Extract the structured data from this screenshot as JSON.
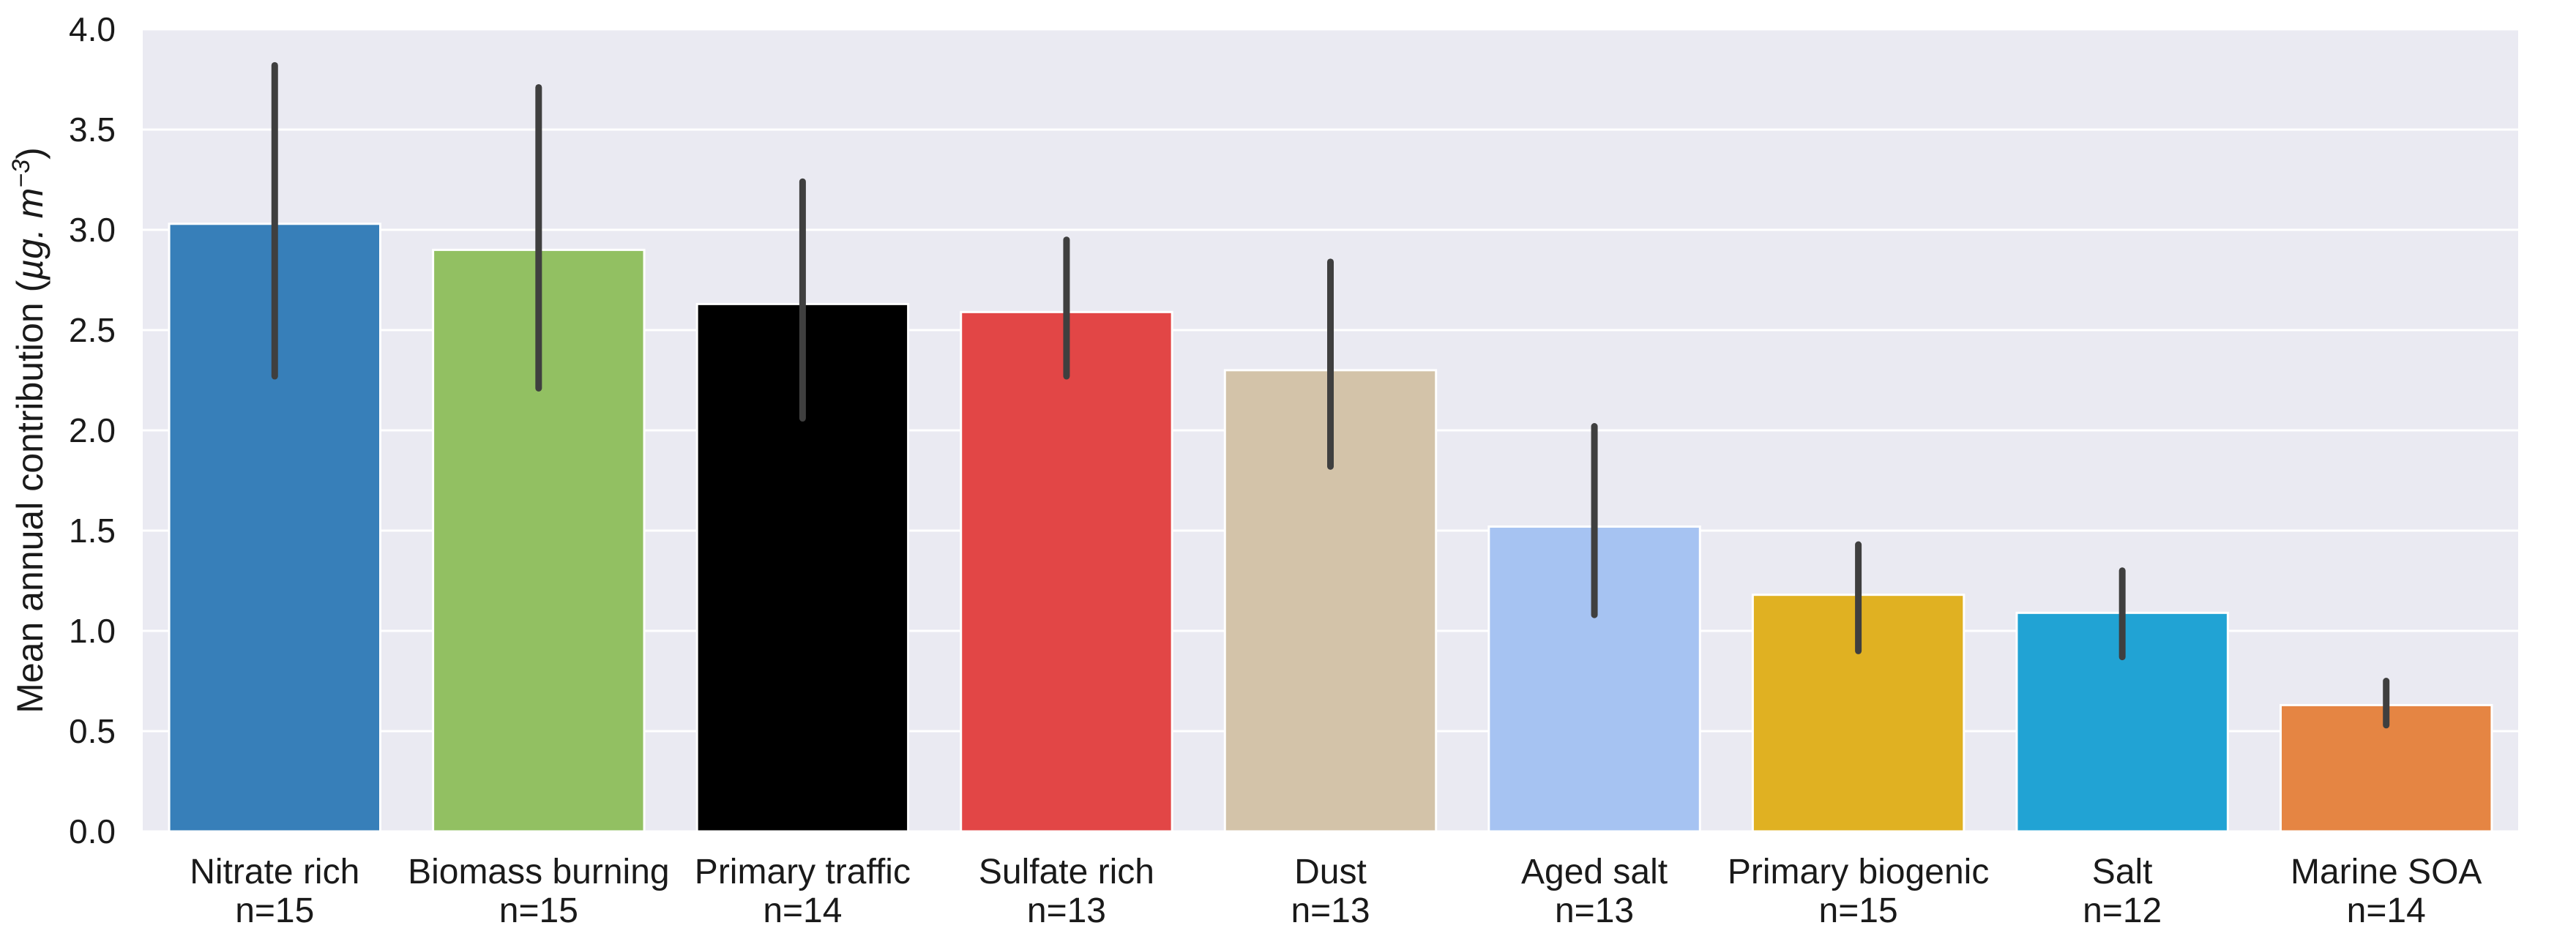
{
  "chart_data": {
    "type": "bar",
    "title": "",
    "xlabel": "",
    "ylabel": "Mean annual contribution (",
    "ylabel_unit": "µg. m",
    "ylabel_exponent": "−3",
    "ylabel_close": ")",
    "ylim": [
      0,
      4.0
    ],
    "yticks": [
      "0.0",
      "0.5",
      "1.0",
      "1.5",
      "2.0",
      "2.5",
      "3.0",
      "3.5",
      "4.0"
    ],
    "grid": true,
    "bars": [
      {
        "category": "Nitrate rich",
        "count": "n=15",
        "value": 3.03,
        "err_low": 2.27,
        "err_high": 3.82,
        "color": "#377fb9"
      },
      {
        "category": "Biomass burning",
        "count": "n=15",
        "value": 2.9,
        "err_low": 2.21,
        "err_high": 3.71,
        "color": "#92c062"
      },
      {
        "category": "Primary traffic",
        "count": "n=14",
        "value": 2.63,
        "err_low": 2.06,
        "err_high": 3.24,
        "color": "#000000"
      },
      {
        "category": "Sulfate rich",
        "count": "n=13",
        "value": 2.59,
        "err_low": 2.27,
        "err_high": 2.95,
        "color": "#e24646"
      },
      {
        "category": "Dust",
        "count": "n=13",
        "value": 2.3,
        "err_low": 1.82,
        "err_high": 2.84,
        "color": "#d3c3a9"
      },
      {
        "category": "Aged salt",
        "count": "n=13",
        "value": 1.52,
        "err_low": 1.08,
        "err_high": 2.02,
        "color": "#a6c3f2"
      },
      {
        "category": "Primary biogenic",
        "count": "n=15",
        "value": 1.18,
        "err_low": 0.9,
        "err_high": 1.43,
        "color": "#e0b122"
      },
      {
        "category": "Salt",
        "count": "n=12",
        "value": 1.09,
        "err_low": 0.87,
        "err_high": 1.3,
        "color": "#21a3d4"
      },
      {
        "category": "Marine SOA",
        "count": "n=14",
        "value": 0.63,
        "err_low": 0.53,
        "err_high": 0.75,
        "color": "#e58543"
      }
    ]
  }
}
